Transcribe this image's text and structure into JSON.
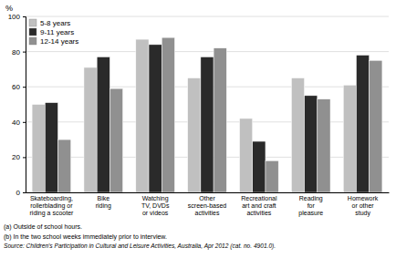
{
  "chart_data": {
    "type": "bar",
    "categories": [
      "Skateboarding,\nrollerblading or\nriding a scooter",
      "Bike\nriding",
      "Watching\nTV, DVDs\nor videos",
      "Other\nscreen-based\nactivities",
      "Recreational\nart and craft\nactivities",
      "Reading\nfor\npleasure",
      "Homework\nor other\nstudy"
    ],
    "series": [
      {
        "name": "5-8 years",
        "color": "#c0c0c0",
        "values": [
          50,
          71,
          87,
          65,
          42,
          65,
          61
        ]
      },
      {
        "name": "9-11 years",
        "color": "#2a2a2a",
        "values": [
          51,
          77,
          84,
          77,
          29,
          55,
          78
        ]
      },
      {
        "name": "12-14 years",
        "color": "#909090",
        "values": [
          30,
          59,
          88,
          82,
          18,
          53,
          75
        ]
      }
    ],
    "ylabel": "%",
    "ylim": [
      0,
      100
    ],
    "yticks": [
      0,
      20,
      40,
      60,
      80,
      100
    ],
    "grid": true,
    "legend": "upper left",
    "annotations": [
      "(a) Outside of school hours.",
      "(b) In the two school weeks immediately prior to interview.",
      "Source: Children's Participation in Cultural and Leisure Activities, Australia, Apr 2012 (cat. no. 4901.0)."
    ]
  }
}
